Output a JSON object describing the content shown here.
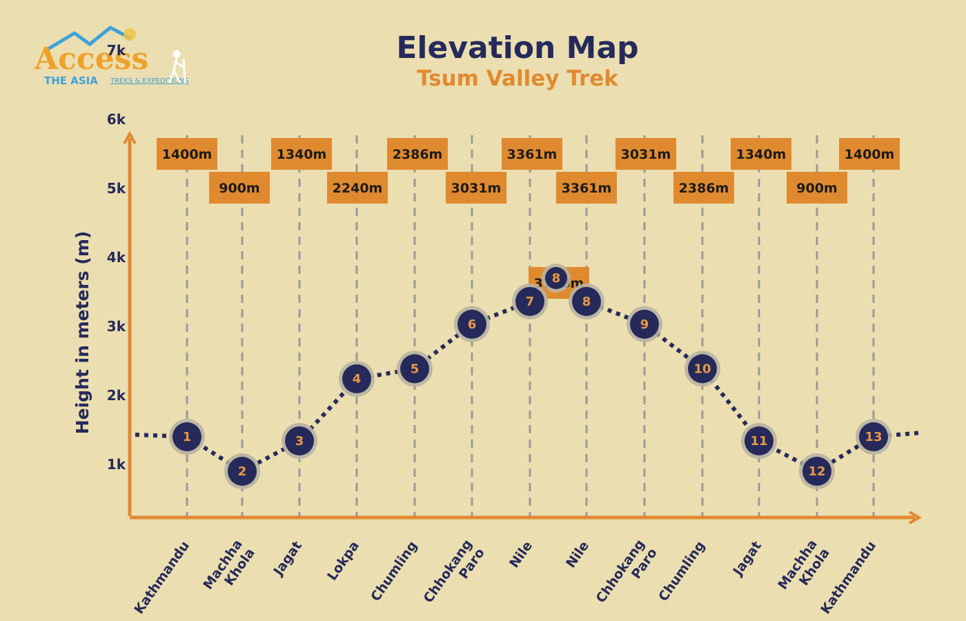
{
  "brand": {
    "name": "Access",
    "line1": "THE ASIA",
    "line2": "TREKS & EXPEDITIONS"
  },
  "header": {
    "title": "Elevation Map",
    "subtitle": "Tsum Valley Trek"
  },
  "colors": {
    "background": "#ebdeb0",
    "navy": "#252a5a",
    "orange": "#e08a30",
    "label_box": "#e08a30"
  },
  "chart_data": {
    "type": "line",
    "title": "Elevation Map",
    "subtitle": "Tsum Valley Trek",
    "ylabel": "Height in meters (m)",
    "xlabel": "",
    "y_ticks": [
      "1k",
      "2k",
      "3k",
      "4k",
      "5k",
      "6k",
      "7k"
    ],
    "y_tick_values": [
      1000,
      2000,
      3000,
      4000,
      5000,
      6000,
      7000
    ],
    "grid": "vertical dashed lines at each stop",
    "points": [
      {
        "num": "1",
        "category": [
          "Kathmandu"
        ],
        "elevation": 1400,
        "label": "1400m"
      },
      {
        "num": "2",
        "category": [
          "Machha",
          "Khola"
        ],
        "elevation": 900,
        "label": "900m"
      },
      {
        "num": "3",
        "category": [
          "Jagat"
        ],
        "elevation": 1340,
        "label": "1340m"
      },
      {
        "num": "4",
        "category": [
          "Lokpa"
        ],
        "elevation": 2240,
        "label": "2240m"
      },
      {
        "num": "5",
        "category": [
          "Chumling"
        ],
        "elevation": 2386,
        "label": "2386m"
      },
      {
        "num": "6",
        "category": [
          "Chhokang",
          "Paro"
        ],
        "elevation": 3031,
        "label": "3031m"
      },
      {
        "num": "7",
        "category": [
          "Nile"
        ],
        "elevation": 3361,
        "label": "3361m"
      },
      {
        "num": "8",
        "category": [],
        "elevation": 3700,
        "label": "3700m"
      },
      {
        "num": "8",
        "category": [
          "Nile"
        ],
        "elevation": 3361,
        "label": "3361m"
      },
      {
        "num": "9",
        "category": [
          "Chhokang",
          "Paro"
        ],
        "elevation": 3031,
        "label": "3031m"
      },
      {
        "num": "10",
        "category": [
          "Chumling"
        ],
        "elevation": 2386,
        "label": "2386m"
      },
      {
        "num": "11",
        "category": [
          "Jagat"
        ],
        "elevation": 1340,
        "label": "1340m"
      },
      {
        "num": "12",
        "category": [
          "Machha",
          "Khola"
        ],
        "elevation": 900,
        "label": "900m"
      },
      {
        "num": "13",
        "category": [
          "Kathmandu"
        ],
        "elevation": 1400,
        "label": "1400m"
      }
    ]
  }
}
